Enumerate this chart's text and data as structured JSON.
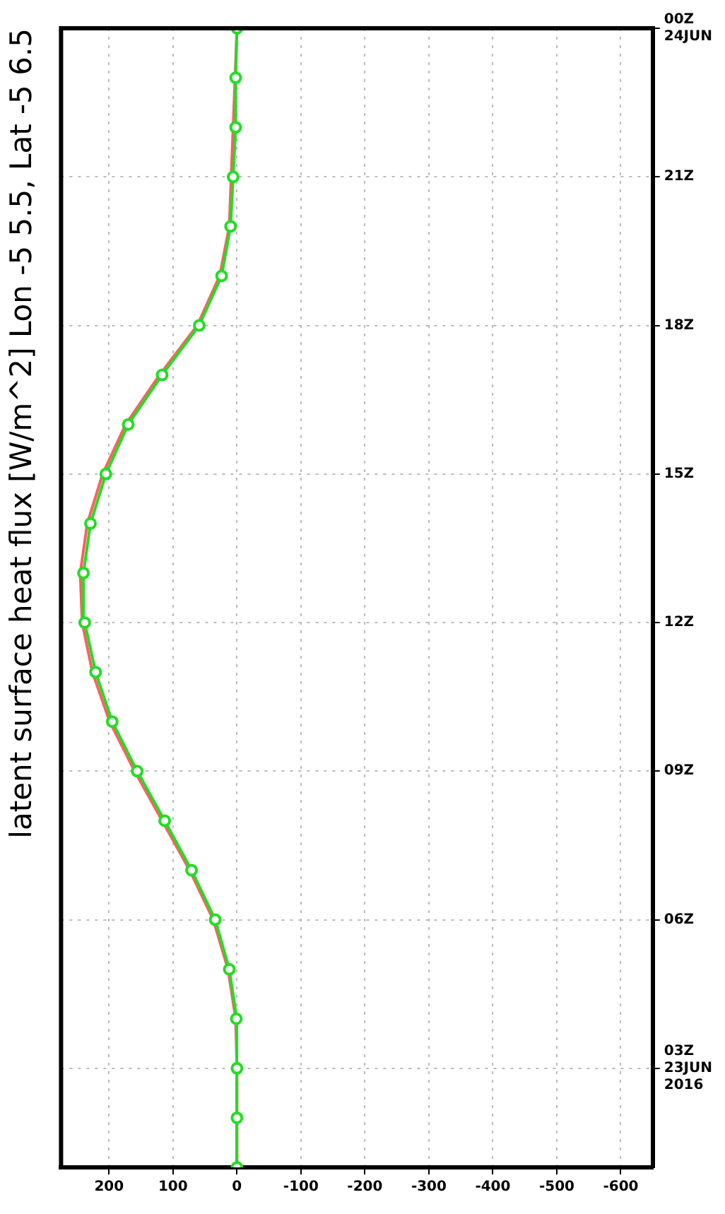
{
  "chart_data": {
    "type": "line",
    "orientation": "horizontal",
    "title": "latent surface heat flux [W/m^2] Lon -5 5.5, Lat -5 6.5",
    "x": [
      1,
      2,
      3,
      4,
      5,
      6,
      7,
      8,
      9,
      10,
      11,
      12,
      13,
      14,
      15,
      16,
      17,
      18,
      19,
      20,
      21,
      22,
      23,
      24
    ],
    "series": [
      {
        "color": "#ff6060",
        "marker": "none",
        "values": [
          0,
          0,
          0,
          2,
          14,
          37,
          74,
          117,
          160,
          199,
          226,
          242,
          245,
          234,
          210,
          174,
          121,
          62,
          27,
          12,
          null,
          null,
          null,
          0
        ]
      },
      {
        "color": "#22dd22",
        "marker": "circle",
        "values": [
          0,
          0,
          0,
          1,
          12,
          34,
          71,
          113,
          156,
          195,
          221,
          238,
          240,
          229,
          205,
          170,
          117,
          59,
          24,
          10,
          6,
          2,
          2,
          0
        ]
      }
    ],
    "xlim": [
      275,
      -650
    ],
    "xticks": [
      200,
      100,
      0,
      -100,
      -200,
      -300,
      -400,
      -500,
      -600
    ],
    "ylim": [
      1,
      24
    ],
    "yticks": [
      {
        "value": 3,
        "label": "03Z\n23JUN\n2016"
      },
      {
        "value": 6,
        "label": "06Z"
      },
      {
        "value": 9,
        "label": "09Z"
      },
      {
        "value": 12,
        "label": "12Z"
      },
      {
        "value": 15,
        "label": "15Z"
      },
      {
        "value": 18,
        "label": "18Z"
      },
      {
        "value": 21,
        "label": "21Z"
      },
      {
        "value": 24,
        "label": "00Z\n24JUN"
      }
    ],
    "grid": true,
    "legend": false,
    "line_style": "solid"
  }
}
